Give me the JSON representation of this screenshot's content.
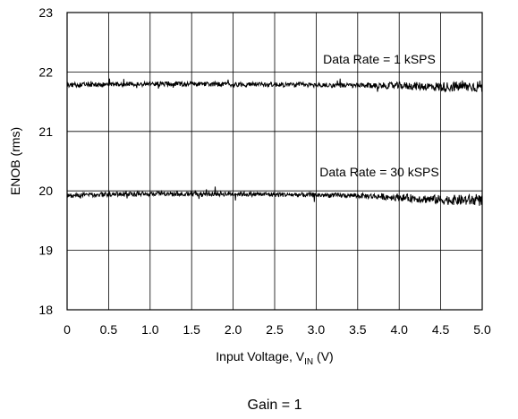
{
  "chart_data": {
    "type": "line",
    "title": "",
    "xlabel_main": "Input Voltage, V",
    "xlabel_sub": "IN",
    "xlabel_unit": " (V)",
    "ylabel": "ENOB (rms)",
    "xlim": [
      0,
      5
    ],
    "ylim": [
      18,
      23
    ],
    "x_ticks": [
      "0",
      "0.5",
      "1.0",
      "1.5",
      "2.0",
      "2.5",
      "3.0",
      "3.5",
      "4.0",
      "4.5",
      "5.0"
    ],
    "y_ticks": [
      "18",
      "19",
      "20",
      "21",
      "22",
      "23"
    ],
    "grid": true,
    "series": [
      {
        "annotation": "Data Rate = 1 kSPS",
        "x": [
          0,
          0.5,
          1.0,
          1.5,
          2.0,
          2.5,
          3.0,
          3.5,
          4.0,
          4.5,
          5.0
        ],
        "y": [
          21.78,
          21.79,
          21.8,
          21.8,
          21.79,
          21.79,
          21.78,
          21.77,
          21.77,
          21.75,
          21.76
        ]
      },
      {
        "annotation": "Data Rate = 30 kSPS",
        "x": [
          0,
          0.5,
          1.0,
          1.5,
          2.0,
          2.5,
          3.0,
          3.5,
          4.0,
          4.5,
          5.0
        ],
        "y": [
          19.92,
          19.94,
          19.95,
          19.95,
          19.95,
          19.94,
          19.93,
          19.92,
          19.89,
          19.85,
          19.84
        ]
      }
    ]
  },
  "caption": "Gain = 1",
  "colors": {
    "line": "#000000",
    "grid": "#000000"
  }
}
